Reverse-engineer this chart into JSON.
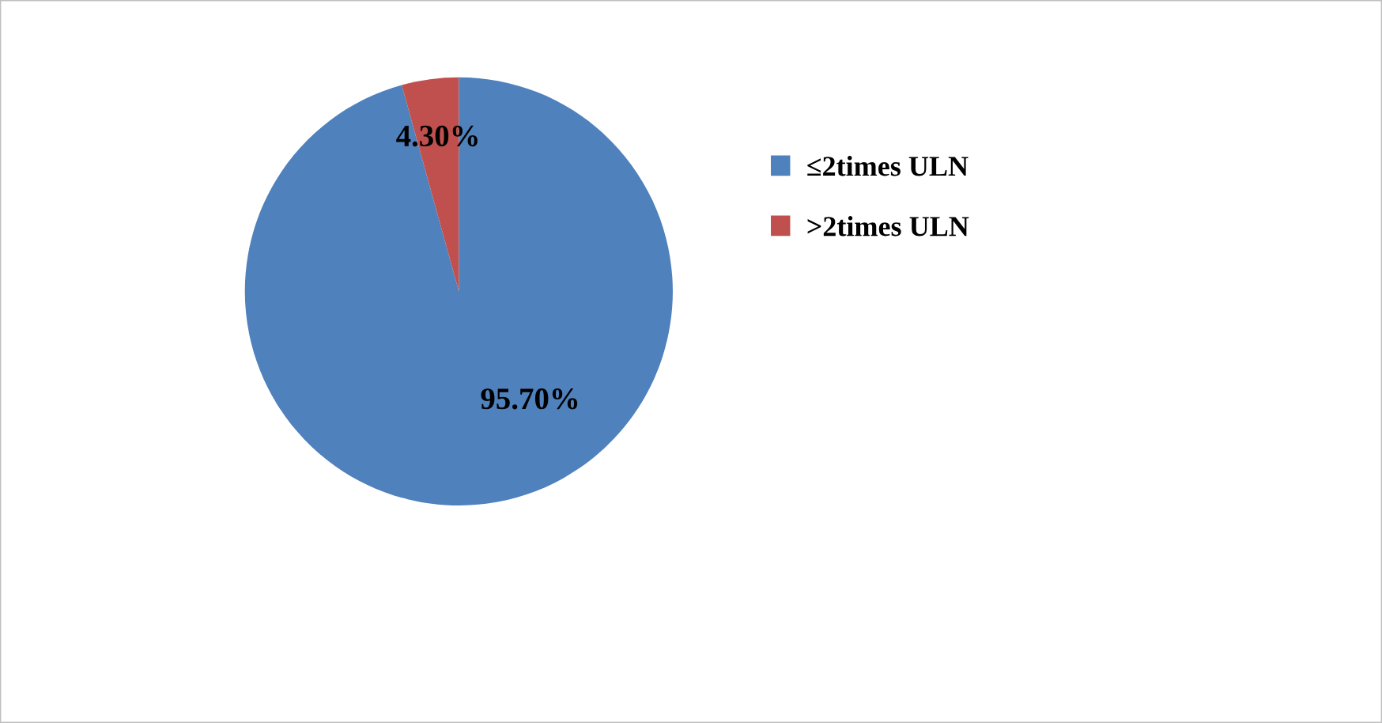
{
  "chart_data": {
    "type": "pie",
    "categories": [
      "≤2times ULN",
      ">2times ULN"
    ],
    "values": [
      95.7,
      4.3
    ],
    "colors": [
      "#4f81bd",
      "#c0504d"
    ],
    "value_labels": [
      "95.70%",
      "4.30%"
    ],
    "legend": "right"
  }
}
